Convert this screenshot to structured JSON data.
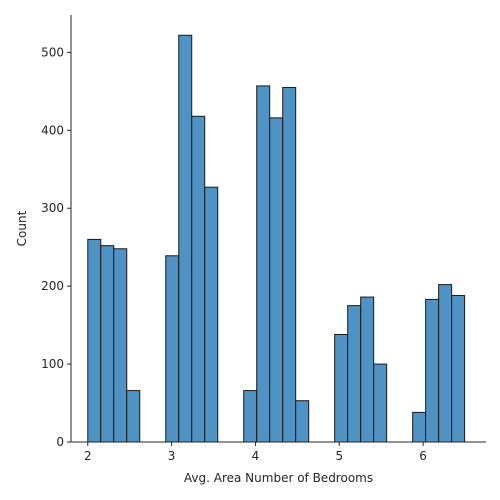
{
  "chart_data": {
    "type": "bar",
    "xlabel": "Avg. Area Number of Bedrooms",
    "ylabel": "Count",
    "xlim": [
      1.8,
      6.75
    ],
    "ylim": [
      0,
      548
    ],
    "xticks": [
      2,
      3,
      4,
      5,
      6
    ],
    "yticks": [
      0,
      100,
      200,
      300,
      400,
      500
    ],
    "bin_width": 0.155,
    "bins": [
      {
        "x0": 2.0,
        "x1": 2.155,
        "count": 260
      },
      {
        "x0": 2.155,
        "x1": 2.31,
        "count": 252
      },
      {
        "x0": 2.31,
        "x1": 2.465,
        "count": 248
      },
      {
        "x0": 2.465,
        "x1": 2.62,
        "count": 66
      },
      {
        "x0": 2.93,
        "x1": 3.085,
        "count": 239
      },
      {
        "x0": 3.085,
        "x1": 3.24,
        "count": 522
      },
      {
        "x0": 3.24,
        "x1": 3.395,
        "count": 418
      },
      {
        "x0": 3.395,
        "x1": 3.55,
        "count": 327
      },
      {
        "x0": 3.86,
        "x1": 4.015,
        "count": 66
      },
      {
        "x0": 4.015,
        "x1": 4.17,
        "count": 457
      },
      {
        "x0": 4.17,
        "x1": 4.325,
        "count": 416
      },
      {
        "x0": 4.325,
        "x1": 4.48,
        "count": 455
      },
      {
        "x0": 4.48,
        "x1": 4.635,
        "count": 53
      },
      {
        "x0": 4.945,
        "x1": 5.1,
        "count": 138
      },
      {
        "x0": 5.1,
        "x1": 5.255,
        "count": 175
      },
      {
        "x0": 5.255,
        "x1": 5.41,
        "count": 186
      },
      {
        "x0": 5.41,
        "x1": 5.565,
        "count": 100
      },
      {
        "x0": 5.875,
        "x1": 6.03,
        "count": 38
      },
      {
        "x0": 6.03,
        "x1": 6.185,
        "count": 183
      },
      {
        "x0": 6.185,
        "x1": 6.34,
        "count": 202
      },
      {
        "x0": 6.34,
        "x1": 6.495,
        "count": 188
      }
    ],
    "colors": {
      "bar_fill": "#4f92c4",
      "bar_edge": "#1a1a1a",
      "axis": "#262626"
    },
    "grid": false,
    "legend": "none"
  }
}
